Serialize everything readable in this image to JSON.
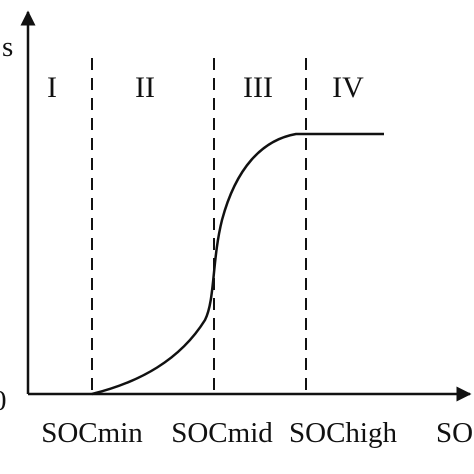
{
  "chart_data": {
    "type": "line",
    "y_axis": {
      "label_fragment": "s",
      "origin_label": "0"
    },
    "x_axis": {
      "label_fragment": "SO",
      "tick_labels": [
        "SOCmin",
        "SOCmid",
        "SOChigh"
      ]
    },
    "regions": [
      "I",
      "II",
      "III",
      "IV"
    ],
    "region_boundaries": [
      "SOCmin",
      "SOCmid",
      "SOChigh"
    ],
    "curve_shape": "zero until SOCmin, rises slowly, steep S-shaped rise through SOCmid, levels off flat at maximum near SOChigh",
    "line_color": "#111111",
    "divider_style": "dashed"
  }
}
